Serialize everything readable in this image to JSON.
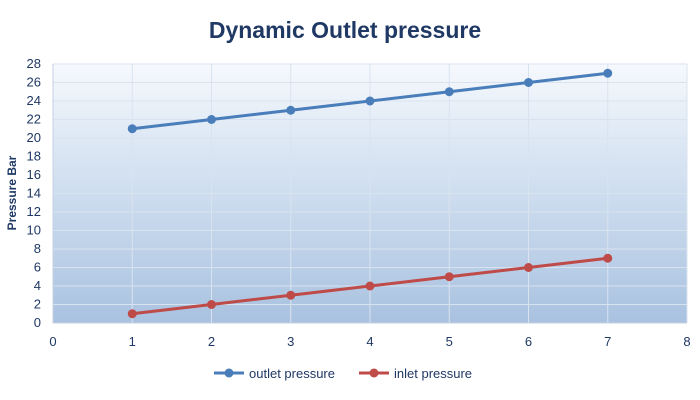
{
  "chart_data": {
    "type": "line",
    "title": "Dynamic Outlet pressure",
    "xlabel": "",
    "ylabel": "Pressure Bar",
    "xlim": [
      0,
      8
    ],
    "ylim": [
      0,
      28
    ],
    "x_ticks": [
      0,
      1,
      2,
      3,
      4,
      5,
      6,
      7,
      8
    ],
    "y_ticks": [
      0,
      2,
      4,
      6,
      8,
      10,
      12,
      14,
      16,
      18,
      20,
      22,
      24,
      26,
      28
    ],
    "grid": true,
    "legend_position": "bottom",
    "x": [
      1,
      2,
      3,
      4,
      5,
      6,
      7
    ],
    "series": [
      {
        "name": "outlet pressure",
        "color": "#4a7ebb",
        "values": [
          21,
          22,
          23,
          24,
          25,
          26,
          27
        ]
      },
      {
        "name": "inlet pressure",
        "color": "#be4b48",
        "values": [
          1,
          2,
          3,
          4,
          5,
          6,
          7
        ]
      }
    ],
    "colors": {
      "plot_bg_top": "#f6f9fd",
      "plot_bg_bottom": "#a9c2e0",
      "grid": "#d9e3f0",
      "text": "#1f3864"
    }
  }
}
